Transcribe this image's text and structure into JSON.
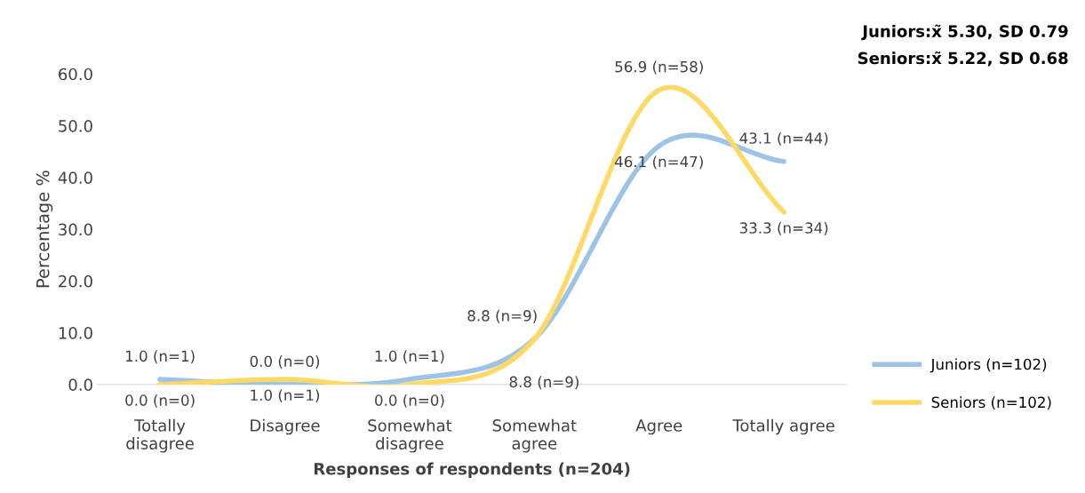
{
  "chart_data": {
    "type": "line",
    "xlabel": "Responses of respondents (n=204)",
    "ylabel": "Percentage %",
    "categories": [
      "Totally\ndisagree",
      "Disagree",
      "Somewhat\ndisagree",
      "Somewhat\nagree",
      "Agree",
      "Totally agree"
    ],
    "series": [
      {
        "name": "Juniors (n=102)",
        "color": "#9dc3e6",
        "values": [
          1.0,
          0.0,
          1.0,
          8.8,
          46.1,
          43.1
        ],
        "value_labels": [
          "1.0 (n=1)",
          "0.0 (n=0)",
          "1.0 (n=1)",
          "8.8 (n=9)",
          "46.1 (n=47)",
          "43.1 (n=44)"
        ]
      },
      {
        "name": "Seniors (n=102)",
        "color": "#ffd966",
        "values": [
          0.0,
          1.0,
          0.0,
          8.8,
          56.9,
          33.3
        ],
        "value_labels": [
          "0.0 (n=0)",
          "1.0 (n=1)",
          "0.0 (n=0)",
          "8.8 (n=9)",
          "56.9 (n=58)",
          "33.3 (n=34)"
        ]
      }
    ],
    "ylim": [
      0,
      60
    ],
    "yticks": [
      {
        "value": 0,
        "label": "0.0"
      },
      {
        "value": 10,
        "label": "10.0"
      },
      {
        "value": 20,
        "label": "20.0"
      },
      {
        "value": 30,
        "label": "30.0"
      },
      {
        "value": 40,
        "label": "40.0"
      },
      {
        "value": 50,
        "label": "50.0"
      },
      {
        "value": 60,
        "label": "60.0"
      }
    ],
    "annotations": [
      "Juniors:x̃ 5.30, SD 0.79",
      "Seniors:x̃ 5.22, SD 0.68"
    ],
    "grid": false,
    "legend": "right",
    "marker": "none",
    "line_style": "solid"
  }
}
